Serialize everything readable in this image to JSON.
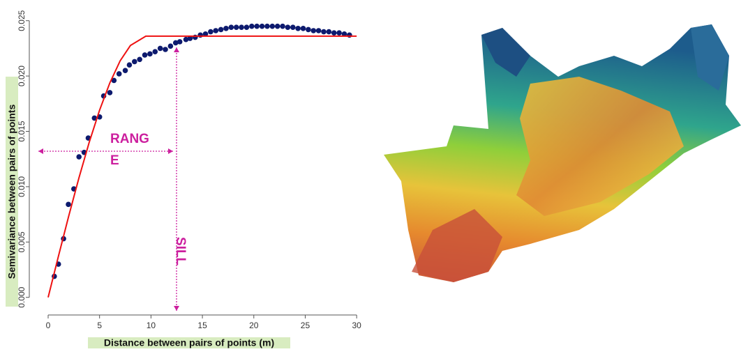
{
  "chart_data": {
    "type": "scatter",
    "xlabel": "Distance between pairs of points (m)",
    "ylabel": "Semivariance between pairs of points",
    "annotations": [
      "RANG",
      "E",
      "SILL"
    ],
    "xlim": [
      -1.2,
      31
    ],
    "ylim": [
      -0.0009,
      0.0258
    ],
    "xticks": [
      0,
      5,
      10,
      15,
      20,
      25,
      30
    ],
    "yticks": [
      {
        "value": 0,
        "label": "0.000"
      },
      {
        "value": 0.005,
        "label": "0.005"
      },
      {
        "value": 0.01,
        "label": "0.010"
      },
      {
        "value": 0.015,
        "label": "0.015"
      },
      {
        "value": 0.02,
        "label": "0.020"
      },
      {
        "value": 0.025,
        "label": "0.025"
      }
    ],
    "series": [
      {
        "style": "points",
        "color": "#0d1a6e",
        "x": [
          0.6,
          1.0,
          1.5,
          1.97,
          2.5,
          3.0,
          3.5,
          3.9,
          4.5,
          5.0,
          5.4,
          6.0,
          6.4,
          6.9,
          7.5,
          7.9,
          8.4,
          8.9,
          9.4,
          9.9,
          10.4,
          10.9,
          11.4,
          11.9,
          12.4,
          12.8,
          13.4,
          13.8,
          14.3,
          14.8,
          15.3,
          15.8,
          16.3,
          16.8,
          17.3,
          17.8,
          18.3,
          18.8,
          19.3,
          19.8,
          20.3,
          20.8,
          21.3,
          21.8,
          22.3,
          22.8,
          23.3,
          23.8,
          24.3,
          24.8,
          25.3,
          25.8,
          26.3,
          26.8,
          27.3,
          27.8,
          28.3,
          28.8,
          29.3
        ],
        "values": [
          0.0019,
          0.003,
          0.0053,
          0.0084,
          0.0098,
          0.0127,
          0.0131,
          0.0144,
          0.0162,
          0.0163,
          0.0182,
          0.0185,
          0.0196,
          0.0202,
          0.0205,
          0.021,
          0.0213,
          0.0215,
          0.0219,
          0.022,
          0.0222,
          0.0225,
          0.0224,
          0.0227,
          0.023,
          0.0231,
          0.0233,
          0.0234,
          0.0235,
          0.0237,
          0.0238,
          0.024,
          0.0241,
          0.0242,
          0.0243,
          0.0244,
          0.0244,
          0.0244,
          0.0244,
          0.0245,
          0.0245,
          0.0245,
          0.0245,
          0.0245,
          0.0245,
          0.0245,
          0.0244,
          0.0244,
          0.0243,
          0.0243,
          0.0242,
          0.0241,
          0.0241,
          0.024,
          0.024,
          0.0239,
          0.0239,
          0.0238,
          0.0237
        ]
      },
      {
        "style": "line",
        "color": "#ee1111",
        "x": [
          0,
          1,
          2,
          3,
          4,
          5,
          6,
          7,
          8,
          9.5,
          30
        ],
        "values": [
          0,
          0.00371,
          0.00734,
          0.01081,
          0.01403,
          0.01691,
          0.01938,
          0.02137,
          0.02276,
          0.0236,
          0.0236
        ]
      }
    ]
  }
}
